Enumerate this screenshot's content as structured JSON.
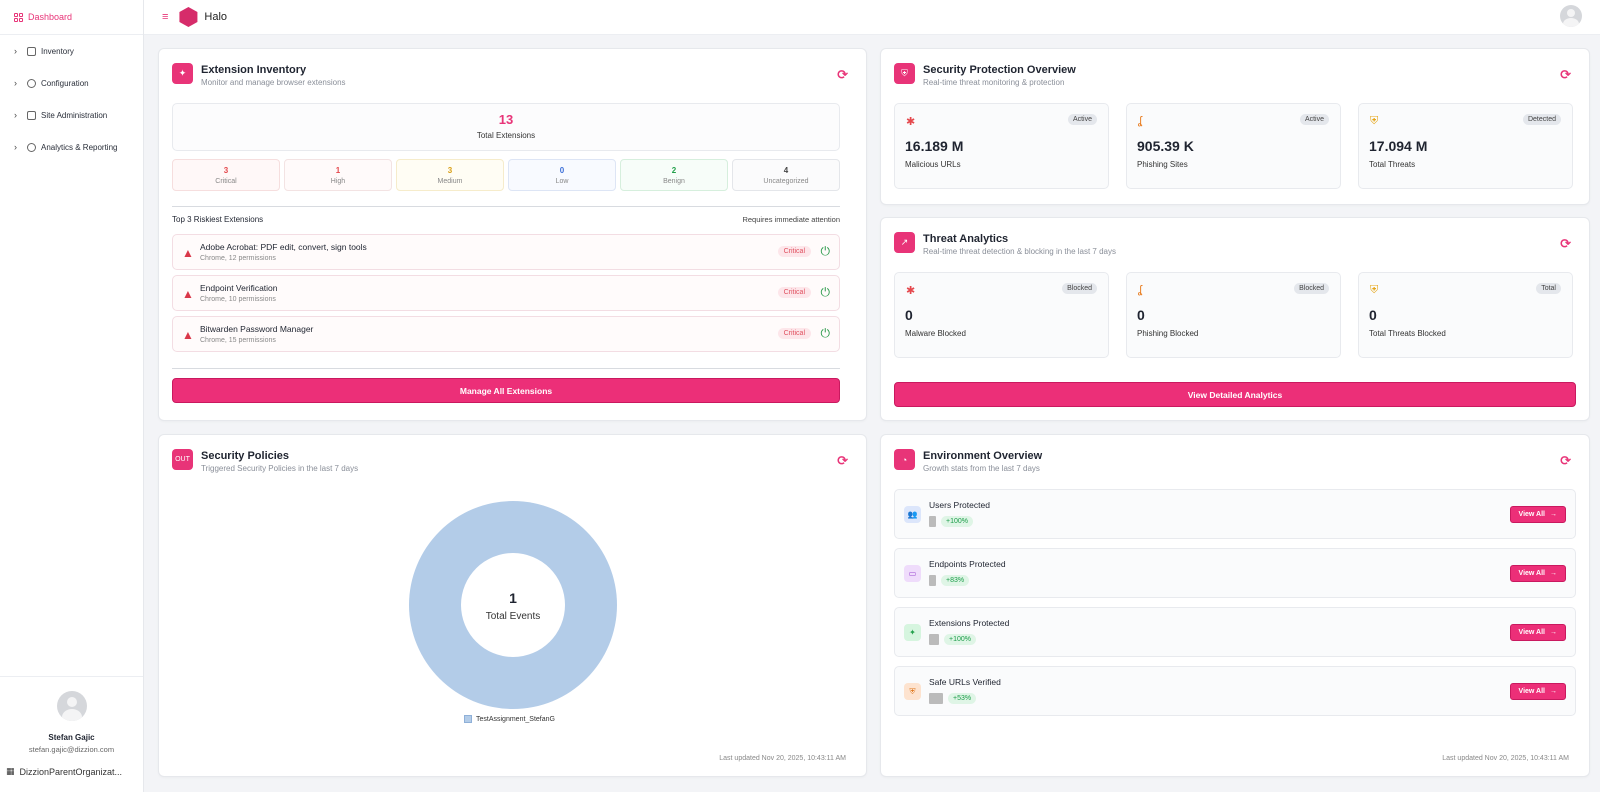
{
  "sidebar": {
    "dashboard_label": "Dashboard",
    "items": [
      {
        "label": "Inventory"
      },
      {
        "label": "Configuration"
      },
      {
        "label": "Site Administration"
      },
      {
        "label": "Analytics & Reporting"
      }
    ],
    "user": {
      "name": "Stefan Gajic",
      "email": "stefan.gajic@dizzion.com",
      "org": "DizzionParentOrganizat..."
    }
  },
  "topbar": {
    "brand": "Halo"
  },
  "extension_inventory": {
    "title": "Extension Inventory",
    "subtitle": "Monitor and manage browser extensions",
    "total": "13",
    "total_label": "Total Extensions",
    "severity": [
      {
        "count": "3",
        "label": "Critical",
        "color": "#e5484d"
      },
      {
        "count": "1",
        "label": "High",
        "color": "#e5484d"
      },
      {
        "count": "3",
        "label": "Medium",
        "color": "#d9a018"
      },
      {
        "count": "0",
        "label": "Low",
        "color": "#3d6fd8"
      },
      {
        "count": "2",
        "label": "Benign",
        "color": "#22a04b"
      },
      {
        "count": "4",
        "label": "Uncategorized",
        "color": "#444444"
      }
    ],
    "risky_title": "Top 3 Riskiest Extensions",
    "risky_note": "Requires immediate attention",
    "risky": [
      {
        "name": "Adobe Acrobat: PDF edit, convert, sign tools",
        "desc": "Chrome, 12 permissions",
        "badge": "Critical"
      },
      {
        "name": "Endpoint Verification",
        "desc": "Chrome, 10 permissions",
        "badge": "Critical"
      },
      {
        "name": "Bitwarden Password Manager",
        "desc": "Chrome, 15 permissions",
        "badge": "Critical"
      }
    ],
    "button": "Manage All Extensions"
  },
  "security_overview": {
    "title": "Security Protection Overview",
    "subtitle": "Real-time threat monitoring & protection",
    "stats": [
      {
        "value": "16.189 M",
        "label": "Malicious URLs",
        "badge": "Active"
      },
      {
        "value": "905.39 K",
        "label": "Phishing Sites",
        "badge": "Active"
      },
      {
        "value": "17.094 M",
        "label": "Total Threats",
        "badge": "Detected"
      }
    ]
  },
  "threat_analytics": {
    "title": "Threat Analytics",
    "subtitle": "Real-time threat detection & blocking in the last 7 days",
    "stats": [
      {
        "value": "0",
        "label": "Malware Blocked",
        "badge": "Blocked"
      },
      {
        "value": "0",
        "label": "Phishing Blocked",
        "badge": "Blocked"
      },
      {
        "value": "0",
        "label": "Total Threats Blocked",
        "badge": "Total"
      }
    ],
    "button": "View Detailed Analytics"
  },
  "security_policies": {
    "title": "Security Policies",
    "subtitle": "Triggered Security Policies in the last 7 days",
    "icon_text": "OUT",
    "center_value": "1",
    "center_label": "Total Events",
    "legend": "TestAssignment_StefanG",
    "updated": "Last updated Nov 20, 2025, 10:43:11 AM"
  },
  "environment": {
    "title": "Environment Overview",
    "subtitle": "Growth stats from the last 7 days",
    "rows": [
      {
        "label": "Users Protected",
        "pct": "+100%",
        "button": "View All"
      },
      {
        "label": "Endpoints Protected",
        "pct": "+83%",
        "button": "View All"
      },
      {
        "label": "Extensions Protected",
        "pct": "+100%",
        "button": "View All"
      },
      {
        "label": "Safe URLs Verified",
        "pct": "+53%",
        "button": "View All"
      }
    ],
    "updated": "Last updated Nov 20, 2025, 10:43:11 AM"
  },
  "chart_data": {
    "type": "pie",
    "title": "Total Events",
    "categories": [
      "TestAssignment_StefanG"
    ],
    "values": [
      1
    ]
  }
}
